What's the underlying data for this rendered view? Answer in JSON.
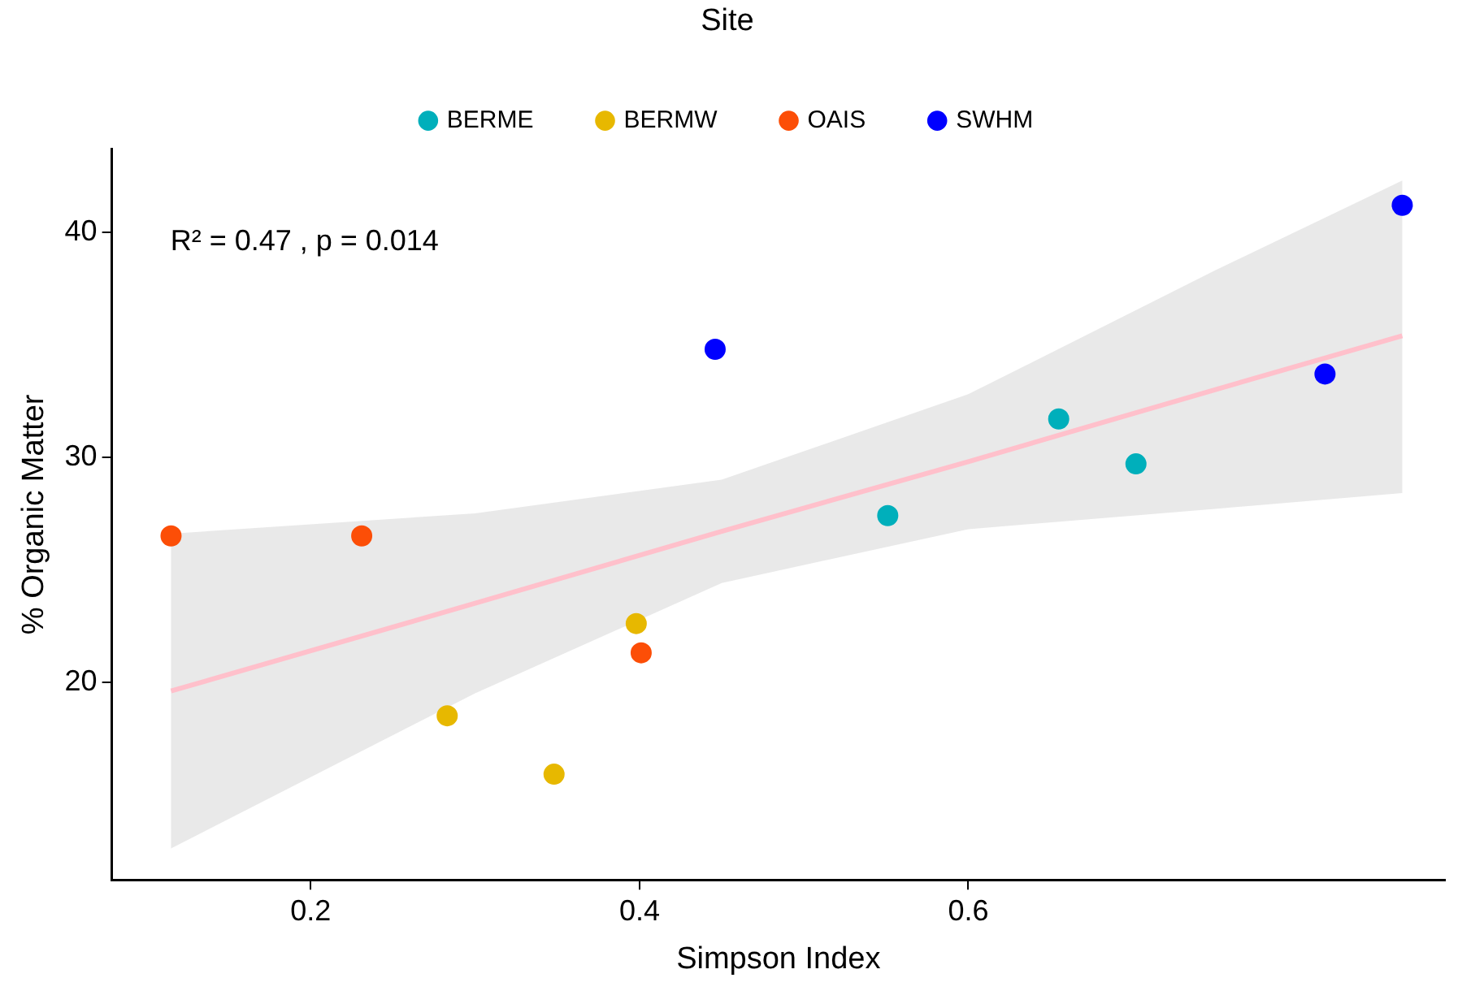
{
  "chart_data": {
    "type": "scatter",
    "xlabel": "Simpson Index",
    "ylabel": "% Organic Matter",
    "legend_title": "Site",
    "legend": "top",
    "grid": false,
    "marker": "circle",
    "xlim": [
      0.079,
      0.89
    ],
    "ylim": [
      11.2,
      43.7
    ],
    "xticks": [
      0.2,
      0.4,
      0.6
    ],
    "yticks": [
      20,
      30,
      40
    ],
    "annotations": [
      "R² = 0.47 , p = 0.014"
    ],
    "series": [
      {
        "name": "BERME",
        "color": "#00afbb",
        "x": [
          0.551,
          0.655,
          0.702
        ],
        "values": [
          27.4,
          31.7,
          29.7
        ]
      },
      {
        "name": "BERMW",
        "color": "#e7b800",
        "x": [
          0.283,
          0.348,
          0.398
        ],
        "values": [
          18.5,
          15.9,
          22.6
        ]
      },
      {
        "name": "OAIS",
        "color": "#fc4e07",
        "x": [
          0.115,
          0.231,
          0.401
        ],
        "values": [
          26.5,
          26.5,
          21.3
        ]
      },
      {
        "name": "SWHM",
        "color": "#0000ff",
        "x": [
          0.446,
          0.817,
          0.864
        ],
        "values": [
          34.8,
          33.7,
          41.2
        ]
      },
      {
        "type": "line",
        "color": "#ffc0cb",
        "marker": "none",
        "x": [
          0.115,
          0.3,
          0.45,
          0.6,
          0.75,
          0.864
        ],
        "values": [
          19.6,
          23.5,
          26.7,
          29.8,
          33.0,
          35.4
        ],
        "lower": [
          12.6,
          19.5,
          24.4,
          26.8,
          27.7,
          28.4
        ],
        "upper": [
          26.6,
          27.5,
          29.0,
          32.8,
          38.3,
          42.3
        ]
      }
    ]
  }
}
